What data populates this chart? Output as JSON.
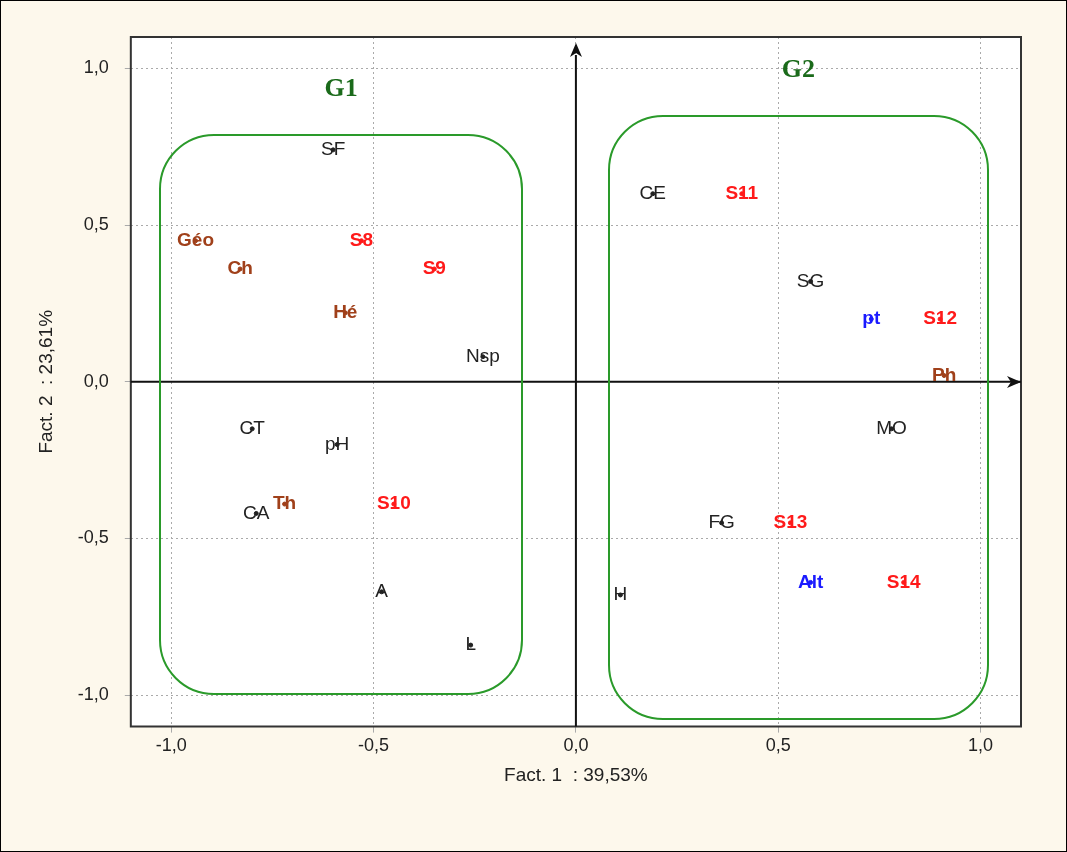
{
  "chart_data": {
    "type": "scatter",
    "xlabel": "Fact. 1  : 39,53%",
    "ylabel": "Fact. 2  : 23,61%",
    "xlim": [
      -1.1,
      1.1
    ],
    "ylim": [
      -1.1,
      1.1
    ],
    "xticks": [
      {
        "value": -1,
        "label": "-1,0"
      },
      {
        "value": -0.5,
        "label": "-0,5"
      },
      {
        "value": 0,
        "label": "0,0"
      },
      {
        "value": 0.5,
        "label": "0,5"
      },
      {
        "value": 1,
        "label": "1,0"
      }
    ],
    "yticks": [
      {
        "value": -1,
        "label": "-1,0"
      },
      {
        "value": -0.5,
        "label": "-0,5"
      },
      {
        "value": 0,
        "label": "0,0"
      },
      {
        "value": 0.5,
        "label": "0,5"
      },
      {
        "value": 1,
        "label": "1,0"
      }
    ],
    "grid": true,
    "legend": false,
    "series": [
      {
        "color": "#222222",
        "x": [
          -0.6,
          -0.23,
          -0.8,
          -0.59,
          -0.79,
          -0.48,
          -0.26,
          0.19,
          0.58,
          0.78,
          0.36,
          0.11
        ],
        "values": [
          0.74,
          0.08,
          -0.15,
          -0.2,
          -0.42,
          -0.67,
          -0.84,
          0.6,
          0.32,
          -0.15,
          -0.45,
          -0.68
        ],
        "value_labels": [
          "SF",
          "Nsp",
          "CT",
          "pH",
          "CA",
          "A",
          "L",
          "CE",
          "SG",
          "MO",
          "FG",
          "H"
        ]
      },
      {
        "color": "#ff1a1a",
        "x": [
          -0.53,
          -0.35,
          -0.45,
          0.41,
          0.9,
          0.53,
          0.81
        ],
        "values": [
          0.45,
          0.36,
          -0.39,
          0.6,
          0.2,
          -0.45,
          -0.64
        ],
        "value_labels": [
          "S8",
          "S9",
          "S10",
          "S11",
          "S12",
          "S13",
          "S14"
        ]
      },
      {
        "color": "#a0401a",
        "x": [
          -0.94,
          -0.83,
          -0.57,
          -0.72,
          0.91
        ],
        "values": [
          0.45,
          0.36,
          0.22,
          -0.39,
          0.02
        ],
        "value_labels": [
          "Géo",
          "Ch",
          "Hé",
          "Th",
          "Ph"
        ]
      },
      {
        "color": "#1a1aff",
        "x": [
          0.73,
          0.58
        ],
        "values": [
          0.2,
          -0.64
        ],
        "value_labels": [
          "pt",
          "Alt"
        ]
      }
    ],
    "annotations": [
      "G1",
      "G2"
    ]
  }
}
